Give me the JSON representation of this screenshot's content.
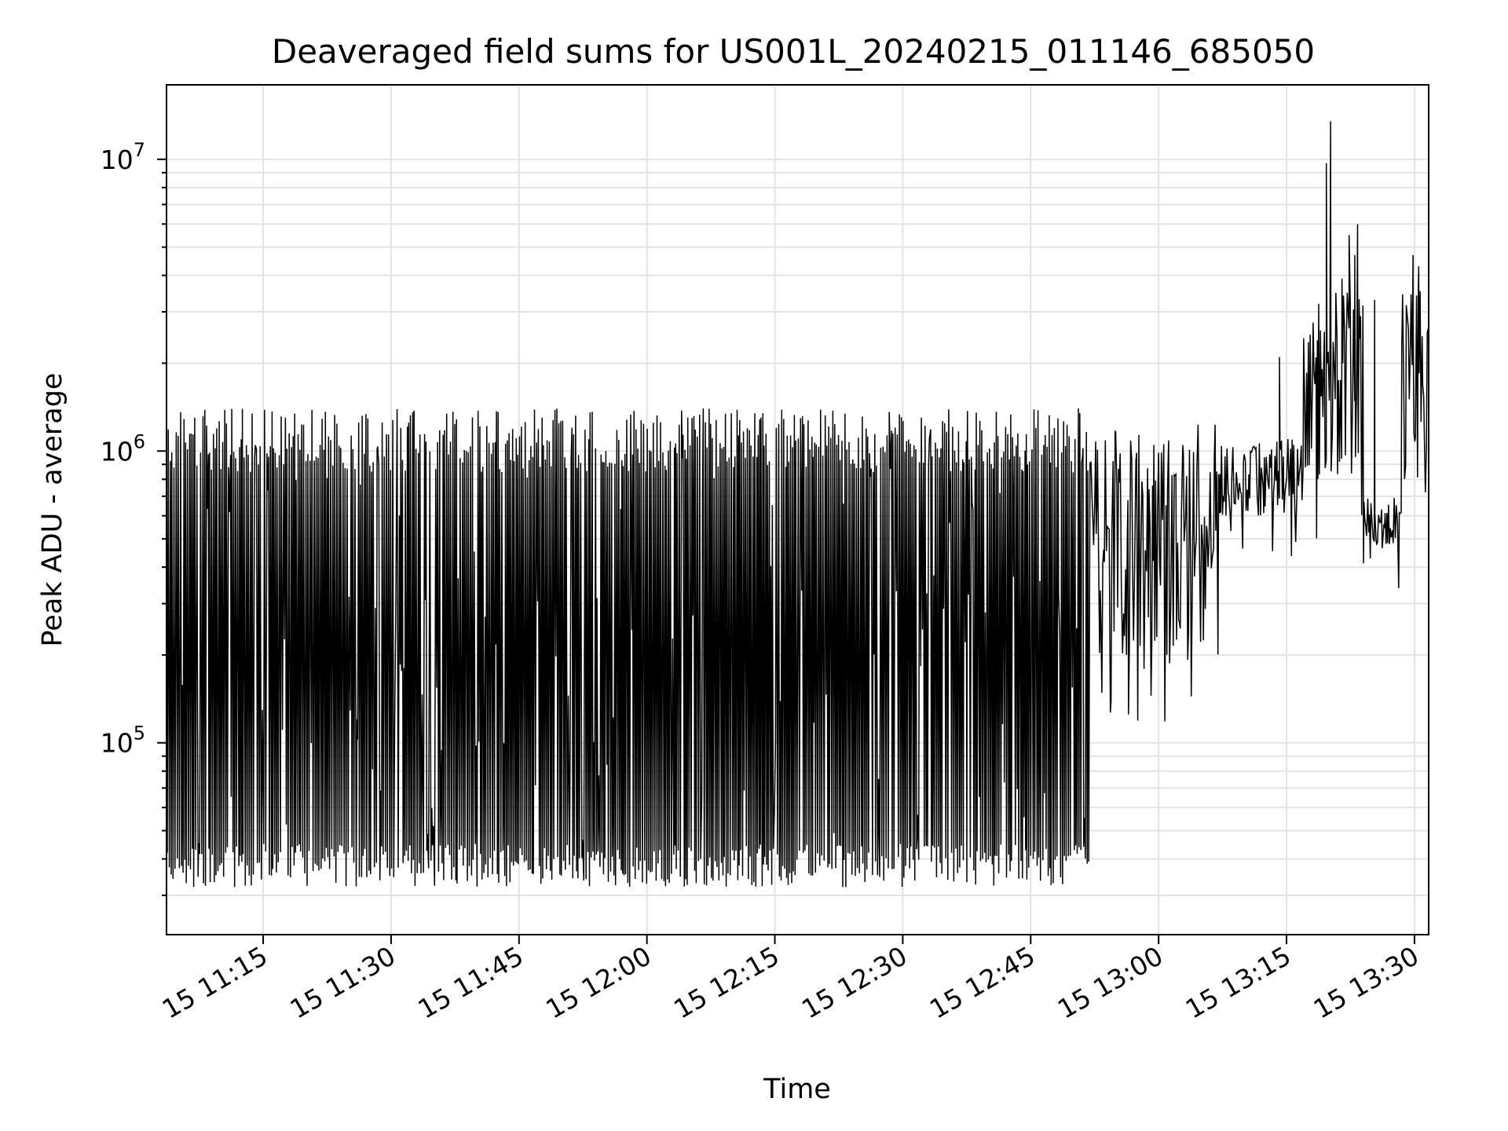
{
  "chart_data": {
    "type": "line",
    "title": "Deaveraged field sums for US001L_20240215_011146_685050",
    "xlabel": "Time",
    "ylabel": "Peak ADU - average",
    "yscale": "log",
    "ylim": [
      22000,
      18000000
    ],
    "xlim": [
      "2024-02-15 11:03:40",
      "2024-02-15 13:31:40"
    ],
    "grid": true,
    "x_ticks": [
      {
        "at": "2024-02-15 11:15",
        "label": "15 11:15"
      },
      {
        "at": "2024-02-15 11:30",
        "label": "15 11:30"
      },
      {
        "at": "2024-02-15 11:45",
        "label": "15 11:45"
      },
      {
        "at": "2024-02-15 12:00",
        "label": "15 12:00"
      },
      {
        "at": "2024-02-15 12:15",
        "label": "15 12:15"
      },
      {
        "at": "2024-02-15 12:30",
        "label": "15 12:30"
      },
      {
        "at": "2024-02-15 12:45",
        "label": "15 12:45"
      },
      {
        "at": "2024-02-15 13:00",
        "label": "15 13:00"
      },
      {
        "at": "2024-02-15 13:15",
        "label": "15 13:15"
      },
      {
        "at": "2024-02-15 13:30",
        "label": "15 13:30"
      }
    ],
    "y_ticks": [
      {
        "value": 100000,
        "base": "10",
        "exp": "5"
      },
      {
        "value": 1000000,
        "base": "10",
        "exp": "6"
      },
      {
        "value": 10000000,
        "base": "10",
        "exp": "7"
      }
    ],
    "series": [
      {
        "color": "#000000",
        "segments": [
          {
            "start": "2024-02-15 11:03:40",
            "end": "2024-02-15 12:52:00",
            "high": 1400000,
            "low": 45000,
            "dip": 32000
          },
          {
            "start": "2024-02-15 12:52:00",
            "end": "2024-02-15 13:07:00",
            "high": 1250000,
            "low": 200000,
            "dip": 115000
          },
          {
            "start": "2024-02-15 13:07:00",
            "end": "2024-02-15 13:17:00",
            "high": 1100000,
            "low": 600000,
            "dip": 400000
          },
          {
            "start": "2024-02-15 13:17:00",
            "end": "2024-02-15 13:24:00",
            "high": 3500000,
            "low": 800000,
            "dip": 430000
          },
          {
            "start": "2024-02-15 13:24:00",
            "end": "2024-02-15 13:28:30",
            "high": 700000,
            "low": 480000,
            "dip": 320000
          },
          {
            "start": "2024-02-15 13:28:30",
            "end": "2024-02-15 13:31:40",
            "high": 3800000,
            "low": 800000,
            "dip": 700000
          }
        ],
        "peaks": [
          {
            "x": "2024-02-15 13:14:10",
            "y": 2100000
          },
          {
            "x": "2024-02-15 13:19:40",
            "y": 9700000
          },
          {
            "x": "2024-02-15 13:20:10",
            "y": 13500000
          },
          {
            "x": "2024-02-15 13:21:30",
            "y": 3900000
          },
          {
            "x": "2024-02-15 13:22:20",
            "y": 5500000
          },
          {
            "x": "2024-02-15 13:23:00",
            "y": 4700000
          },
          {
            "x": "2024-02-15 13:23:20",
            "y": 6000000
          },
          {
            "x": "2024-02-15 13:25:20",
            "y": 3300000
          },
          {
            "x": "2024-02-15 13:29:50",
            "y": 4700000
          },
          {
            "x": "2024-02-15 13:30:30",
            "y": 4300000
          }
        ]
      }
    ]
  }
}
